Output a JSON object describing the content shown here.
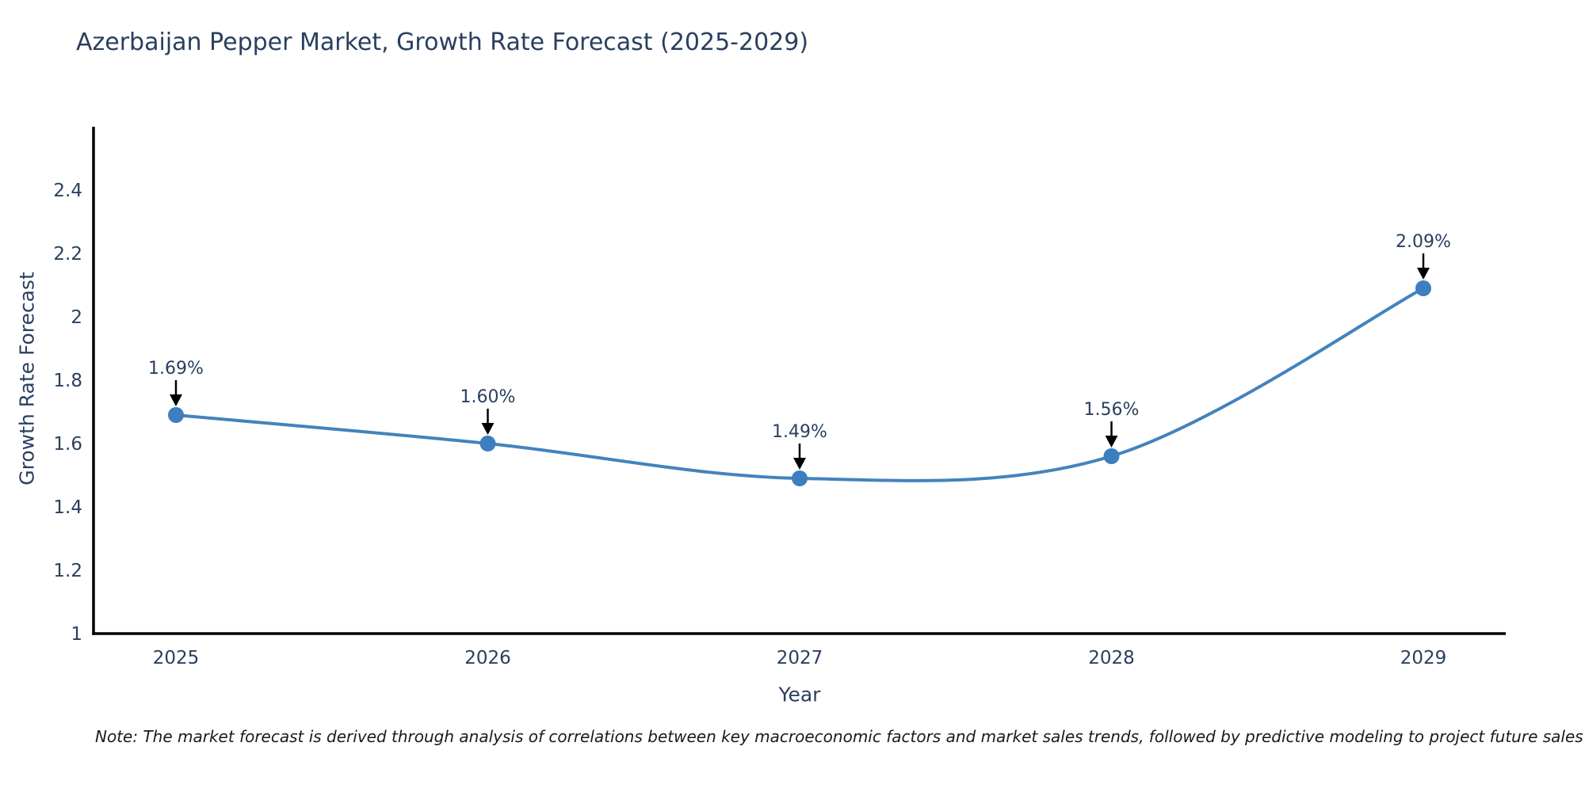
{
  "note": "Note: The market forecast is derived through analysis of correlations between key macroeconomic factors and market sales trends, followed by predictive modeling to project future sales",
  "chart_data": {
    "type": "line",
    "title": "Azerbaijan Pepper Market, Growth Rate Forecast (2025-2029)",
    "xlabel": "Year",
    "ylabel": "Growth Rate Forecast",
    "x": [
      2025,
      2026,
      2027,
      2028,
      2029
    ],
    "categories": [
      "2025",
      "2026",
      "2027",
      "2028",
      "2029"
    ],
    "series": [
      {
        "name": "Growth Rate Forecast",
        "values": [
          1.69,
          1.6,
          1.49,
          1.56,
          2.09
        ]
      }
    ],
    "point_labels": [
      "1.69%",
      "1.60%",
      "1.49%",
      "1.56%",
      "2.09%"
    ],
    "ylim": [
      1.0,
      2.6
    ],
    "yticks": [
      1.0,
      1.2,
      1.4,
      1.6,
      1.8,
      2.0,
      2.2,
      2.4
    ],
    "ytick_labels": [
      "1",
      "1.2",
      "1.4",
      "1.6",
      "1.8",
      "2",
      "2.2",
      "2.4"
    ],
    "line_shape": "spline",
    "grid": false,
    "legend_visible": false,
    "colors": {
      "line": "#4383bd",
      "marker": "#3d7ebf",
      "axis": "#000000",
      "text": "#2a3f5f",
      "annotation_arrow": "#000000",
      "background": "#ffffff"
    }
  }
}
